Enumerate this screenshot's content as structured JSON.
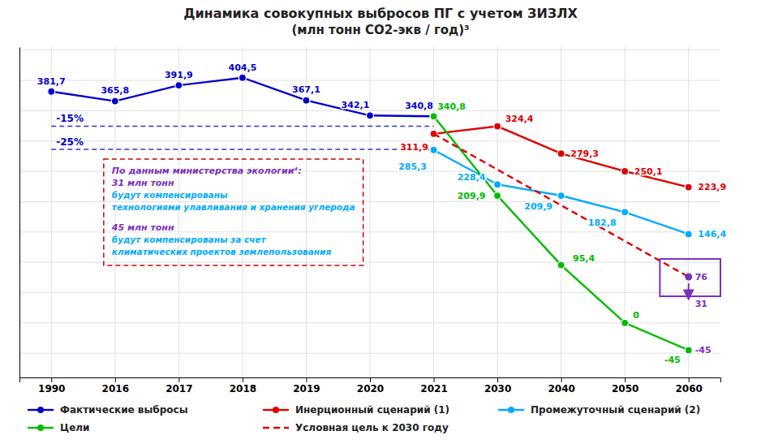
{
  "chart_data": {
    "type": "line",
    "title": "Динамика совокупных выбросов ПГ с учетом ЗИЗЛХ",
    "subtitle": "(млн тонн СО2-экв / год)³",
    "categories": [
      "1990",
      "2016",
      "2017",
      "2018",
      "2019",
      "2020",
      "2021",
      "2030",
      "2040",
      "2050",
      "2060"
    ],
    "series": [
      {
        "name": "Фактические выбросы",
        "color": "#0000cc",
        "marker": "circle",
        "values": [
          381.7,
          365.8,
          391.9,
          404.5,
          367.1,
          342.1,
          340.8,
          null,
          null,
          null,
          null
        ],
        "value_labels": [
          "381,7",
          "365,8",
          "391,9",
          "404,5",
          "367,1",
          "342,1",
          "340,8",
          null,
          null,
          null,
          null
        ]
      },
      {
        "name": "Инерционный сценарий (1)",
        "color": "#dd0000",
        "marker": "circle",
        "values": [
          null,
          null,
          null,
          null,
          null,
          null,
          311.9,
          324.4,
          279.3,
          250.1,
          223.9
        ],
        "value_labels": [
          null,
          null,
          null,
          null,
          null,
          null,
          "311,9",
          "324,4",
          "279,3",
          "250,1",
          "223,9"
        ]
      },
      {
        "name": "Промежуточный сценарий (2)",
        "color": "#00aaff",
        "marker": "circle",
        "values": [
          null,
          null,
          null,
          null,
          null,
          null,
          285.3,
          228.4,
          209.9,
          182.8,
          146.4
        ],
        "value_labels": [
          null,
          null,
          null,
          null,
          null,
          null,
          "285,3",
          "228,4",
          "209,9",
          "182,8",
          "146,4"
        ]
      },
      {
        "name": "Цели",
        "color": "#00bb00",
        "marker": "circle",
        "values": [
          null,
          null,
          null,
          null,
          null,
          null,
          340.8,
          209.9,
          95.4,
          0.0,
          -45.0
        ],
        "value_labels": [
          null,
          null,
          null,
          null,
          null,
          null,
          "340,8",
          "209,9",
          "95,4",
          "0",
          "-45"
        ]
      },
      {
        "name": "Условная цель к 2030 году",
        "color": "#dd0000",
        "line_style": "dashed",
        "data_labels": false,
        "x": [
          "2021",
          "2060"
        ],
        "values": [
          311.9,
          76.0
        ]
      }
    ],
    "reference_lines": [
      {
        "label": "-15%",
        "value": 324.445,
        "x": [
          "1990",
          "2021"
        ],
        "color": "#0000cc"
      },
      {
        "label": "-25%",
        "value": 286.275,
        "x": [
          "1990",
          "2021"
        ],
        "color": "#0000cc"
      }
    ],
    "annotations": [
      {
        "text": "По данным министерства экологии⁴:",
        "color": "#7b2fbe"
      },
      {
        "text": "31 млн тонн",
        "color": "#7b2fbe"
      },
      {
        "text": "будут компенсированы",
        "color": "#00aaff"
      },
      {
        "text": "технологиями улавливания и хранения углерода",
        "color": "#00aaff"
      },
      {
        "text": "45 млн тонн",
        "color": "#7b2fbe"
      },
      {
        "text": "будут компенсированы за счет",
        "color": "#00aaff"
      },
      {
        "text": "климатических проектов землепользования",
        "color": "#00aaff"
      },
      {
        "text": "76",
        "value": 76,
        "x": "2060",
        "color": "#7b2fbe",
        "marker": "circle"
      },
      {
        "text": "31",
        "value": 31,
        "x": "2060",
        "color": "#7b2fbe"
      },
      {
        "text": "-45",
        "value": -45,
        "x": "2060",
        "color": "#7b2fbe"
      }
    ],
    "ylim": [
      -90,
      455
    ],
    "yticks": [
      -50,
      0,
      50,
      100,
      150,
      200,
      250,
      300,
      350,
      400,
      450
    ],
    "grid": true,
    "tick_labels": "x",
    "data_labels": true,
    "legend": "bottom"
  }
}
